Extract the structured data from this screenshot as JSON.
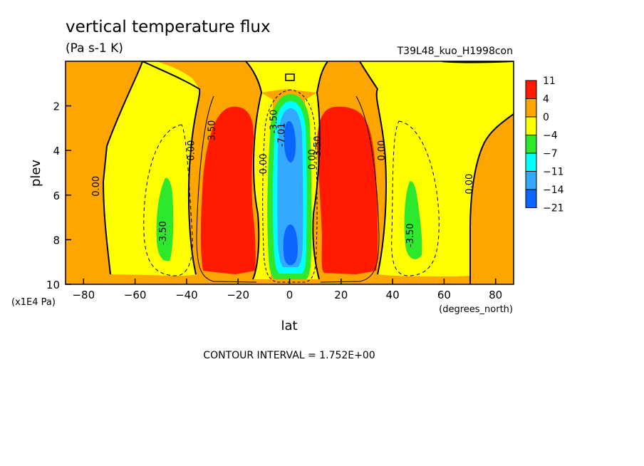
{
  "chart_data": {
    "type": "heatmap",
    "title": "vertical temperature flux",
    "units": "(Pa s-1 K)",
    "run_label": "T39L48_kuo_H1998con",
    "xlabel": "lat",
    "xunits": "(degrees_north)",
    "ylabel": "plev",
    "yunits": "(x1E4 Pa)",
    "xlim": [
      -87,
      87
    ],
    "ylim": [
      10,
      0
    ],
    "x_ticks": [
      -80,
      -60,
      -40,
      -20,
      0,
      20,
      40,
      60,
      80
    ],
    "x_tick_labels": [
      "−80",
      "−60",
      "−40",
      "−20",
      "0",
      "20",
      "40",
      "60",
      "80"
    ],
    "y_ticks": [
      2,
      4,
      6,
      8,
      10
    ],
    "y_tick_labels": [
      "2",
      "4",
      "6",
      "8",
      "10"
    ],
    "colorbar": {
      "labels": [
        "11",
        "4",
        "0",
        "−4",
        "−7",
        "−11",
        "−14",
        "−21"
      ],
      "colors": [
        "#ff1a00",
        "#ffa500",
        "#ffff00",
        "#2ee82e",
        "#00ffff",
        "#33aaff",
        "#0a66ff"
      ]
    },
    "contour_labels": [
      {
        "text": "0.00",
        "lat": -74,
        "plev": 5.6
      },
      {
        "text": "-3.50",
        "lat": -48,
        "plev": 7.7
      },
      {
        "text": "0.00",
        "lat": -37,
        "plev": 4.0
      },
      {
        "text": "3.50",
        "lat": -29,
        "plev": 3.1
      },
      {
        "text": "0.00",
        "lat": -9,
        "plev": 4.6
      },
      {
        "text": "-3.50",
        "lat": -5,
        "plev": 2.7
      },
      {
        "text": "-7.01",
        "lat": -2,
        "plev": 3.3
      },
      {
        "text": "0.00",
        "lat": 10,
        "plev": 4.4
      },
      {
        "text": "3.50",
        "lat": 12,
        "plev": 3.8
      },
      {
        "text": "0.00",
        "lat": 37,
        "plev": 4.0
      },
      {
        "text": "0.00",
        "lat": 71,
        "plev": 5.5
      },
      {
        "text": "-3.50",
        "lat": 48,
        "plev": 7.8
      }
    ],
    "footer": "CONTOUR INTERVAL = 1.752E+00",
    "legend": "right"
  }
}
